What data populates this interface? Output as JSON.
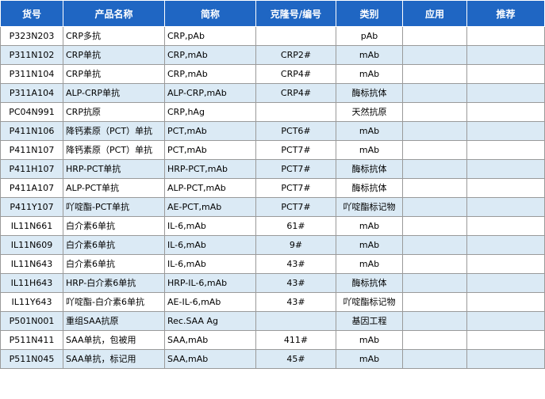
{
  "headers": [
    "货号",
    "产品名称",
    "简称",
    "克隆号/编号",
    "类别",
    "应用",
    "推荐"
  ],
  "rows": [
    {
      "code": "P323N203",
      "name": "CRP多抗",
      "abbr": "CRP,pAb",
      "clone": "",
      "category": "pAb",
      "application": "",
      "recommend": ""
    },
    {
      "code": "P311N102",
      "name": "CRP单抗",
      "abbr": "CRP,mAb",
      "clone": "CRP2#",
      "category": "mAb",
      "application": "",
      "recommend": ""
    },
    {
      "code": "P311N104",
      "name": "CRP单抗",
      "abbr": "CRP,mAb",
      "clone": "CRP4#",
      "category": "mAb",
      "application": "",
      "recommend": ""
    },
    {
      "code": "P311A104",
      "name": "ALP-CRP单抗",
      "abbr": "ALP-CRP,mAb",
      "clone": "CRP4#",
      "category": "酶标抗体",
      "application": "",
      "recommend": ""
    },
    {
      "code": "PC04N991",
      "name": "CRP抗原",
      "abbr": "CRP,hAg",
      "clone": "",
      "category": "天然抗原",
      "application": "",
      "recommend": ""
    },
    {
      "code": "P411N106",
      "name": "降钙素原（PCT）单抗",
      "abbr": "PCT,mAb",
      "clone": "PCT6#",
      "category": "mAb",
      "application": "",
      "recommend": ""
    },
    {
      "code": "P411N107",
      "name": "降钙素原（PCT）单抗",
      "abbr": "PCT,mAb",
      "clone": "PCT7#",
      "category": "mAb",
      "application": "",
      "recommend": ""
    },
    {
      "code": "P411H107",
      "name": "HRP-PCT单抗",
      "abbr": "HRP-PCT,mAb",
      "clone": "PCT7#",
      "category": "酶标抗体",
      "application": "",
      "recommend": ""
    },
    {
      "code": "P411A107",
      "name": "ALP-PCT单抗",
      "abbr": "ALP-PCT,mAb",
      "clone": "PCT7#",
      "category": "酶标抗体",
      "application": "",
      "recommend": ""
    },
    {
      "code": "P411Y107",
      "name": "吖啶酯-PCT单抗",
      "abbr": "AE-PCT,mAb",
      "clone": "PCT7#",
      "category": "吖啶酯标记物",
      "application": "",
      "recommend": ""
    },
    {
      "code": "IL11N661",
      "name": "白介素6单抗",
      "abbr": "IL-6,mAb",
      "clone": "61#",
      "category": "mAb",
      "application": "",
      "recommend": ""
    },
    {
      "code": "IL11N609",
      "name": "白介素6单抗",
      "abbr": "IL-6,mAb",
      "clone": "9#",
      "category": "mAb",
      "application": "",
      "recommend": ""
    },
    {
      "code": "IL11N643",
      "name": "白介素6单抗",
      "abbr": "IL-6,mAb",
      "clone": "43#",
      "category": "mAb",
      "application": "",
      "recommend": ""
    },
    {
      "code": "IL11H643",
      "name": "HRP-白介素6单抗",
      "abbr": "HRP-IL-6,mAb",
      "clone": "43#",
      "category": "酶标抗体",
      "application": "",
      "recommend": ""
    },
    {
      "code": "IL11Y643",
      "name": "吖啶酯-白介素6单抗",
      "abbr": "AE-IL-6,mAb",
      "clone": "43#",
      "category": "吖啶酯标记物",
      "application": "",
      "recommend": ""
    },
    {
      "code": "P501N001",
      "name": "重组SAA抗原",
      "abbr": "Rec.SAA Ag",
      "clone": "",
      "category": "基因工程",
      "application": "",
      "recommend": ""
    },
    {
      "code": "P511N411",
      "name": "SAA单抗，包被用",
      "abbr": "SAA,mAb",
      "clone": "411#",
      "category": "mAb",
      "application": "",
      "recommend": ""
    },
    {
      "code": "P511N045",
      "name": "SAA单抗，标记用",
      "abbr": "SAA,mAb",
      "clone": "45#",
      "category": "mAb",
      "application": "",
      "recommend": ""
    }
  ]
}
